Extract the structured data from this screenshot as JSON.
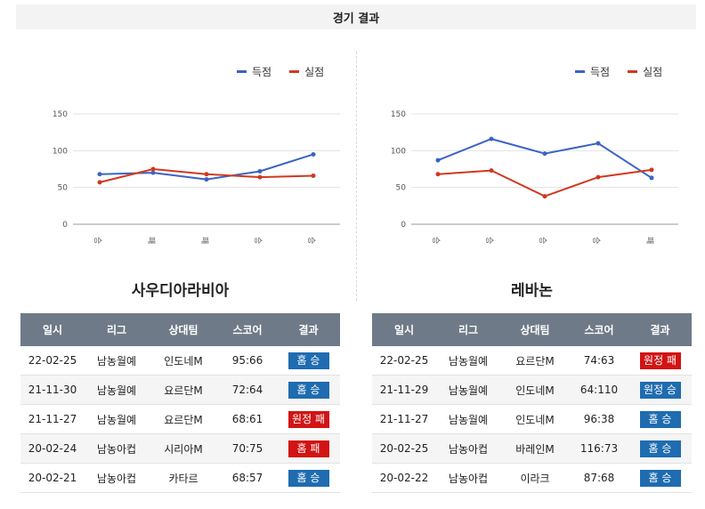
{
  "header": {
    "title": "경기 결과"
  },
  "legend": {
    "scored": "득점",
    "conceded": "실점"
  },
  "colors": {
    "scored": "#3b63c4",
    "conceded": "#d0391e",
    "win": "#1f6cb0",
    "loss": "#d21414",
    "header_bg": "#6e7a87"
  },
  "columns": [
    "일시",
    "리그",
    "상대팀",
    "스코어",
    "결과"
  ],
  "teams": [
    {
      "name": "사우디아라비아",
      "rows": [
        {
          "date": "22-02-25",
          "league": "남농월예",
          "opponent": "인도네M",
          "score": "95:66",
          "result": "홈 승",
          "win": true
        },
        {
          "date": "21-11-30",
          "league": "남농월예",
          "opponent": "요르단M",
          "score": "72:64",
          "result": "홈 승",
          "win": true
        },
        {
          "date": "21-11-27",
          "league": "남농월예",
          "opponent": "요르단M",
          "score": "68:61",
          "result": "원정 패",
          "win": false
        },
        {
          "date": "20-02-24",
          "league": "남농아컵",
          "opponent": "시리아M",
          "score": "70:75",
          "result": "홈 패",
          "win": false
        },
        {
          "date": "20-02-21",
          "league": "남농아컵",
          "opponent": "카타르",
          "score": "68:57",
          "result": "홈 승",
          "win": true
        }
      ]
    },
    {
      "name": "레바논",
      "rows": [
        {
          "date": "22-02-25",
          "league": "남농월예",
          "opponent": "요르단M",
          "score": "74:63",
          "result": "원정 패",
          "win": false
        },
        {
          "date": "21-11-29",
          "league": "남농월예",
          "opponent": "인도네M",
          "score": "64:110",
          "result": "원정 승",
          "win": true
        },
        {
          "date": "21-11-27",
          "league": "남농월예",
          "opponent": "인도네M",
          "score": "96:38",
          "result": "홈 승",
          "win": true
        },
        {
          "date": "20-02-25",
          "league": "남농아컵",
          "opponent": "바레인M",
          "score": "116:73",
          "result": "홈 승",
          "win": true
        },
        {
          "date": "20-02-22",
          "league": "남농아컵",
          "opponent": "이라크",
          "score": "87:68",
          "result": "홈 승",
          "win": true
        }
      ]
    }
  ],
  "chart_data": [
    {
      "type": "line",
      "categories": [
        "승",
        "패",
        "패",
        "승",
        "승"
      ],
      "ylim": [
        0,
        150
      ],
      "yticks": [
        "0",
        "50",
        "100",
        "150"
      ],
      "series": [
        {
          "name": "득점",
          "values": [
            68,
            70,
            61,
            72,
            95
          ]
        },
        {
          "name": "실점",
          "values": [
            57,
            75,
            68,
            64,
            66
          ]
        }
      ]
    },
    {
      "type": "line",
      "categories": [
        "승",
        "승",
        "승",
        "승",
        "패"
      ],
      "ylim": [
        0,
        150
      ],
      "yticks": [
        "0",
        "50",
        "100",
        "150"
      ],
      "series": [
        {
          "name": "득점",
          "values": [
            87,
            116,
            96,
            110,
            63
          ]
        },
        {
          "name": "실점",
          "values": [
            68,
            73,
            38,
            64,
            74
          ]
        }
      ]
    }
  ]
}
